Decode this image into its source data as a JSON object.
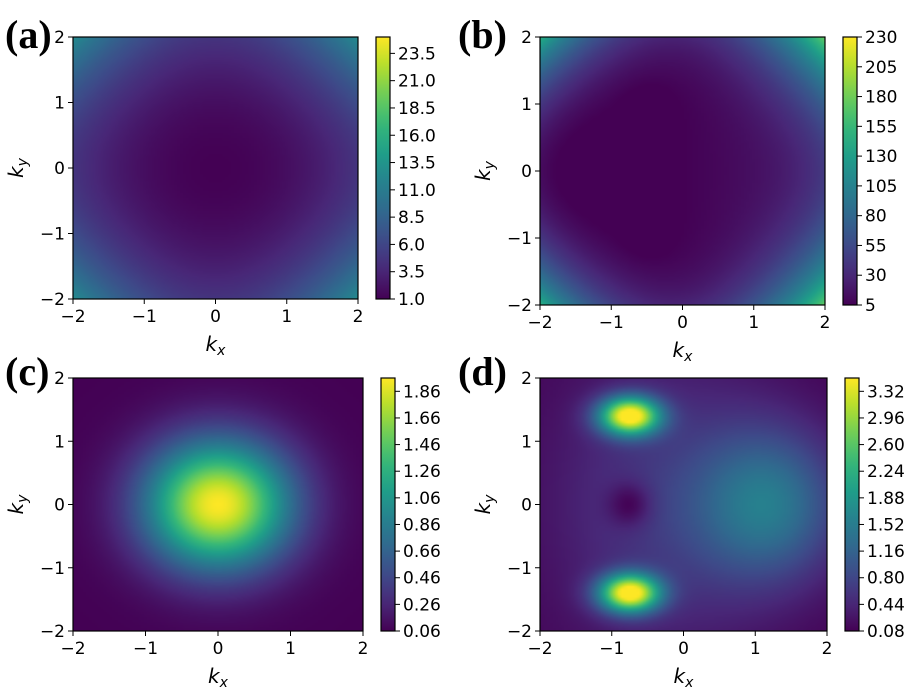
{
  "chart_data": [
    {
      "type": "heatmap",
      "panel_label": "(a)",
      "xlabel": "k_x",
      "ylabel": "k_y",
      "xlim": [
        -2,
        2
      ],
      "ylim": [
        -2,
        2
      ],
      "xticks": [
        "−2",
        "−1",
        "0",
        "1",
        "2"
      ],
      "yticks": [
        "−2",
        "−1",
        "0",
        "1",
        "2"
      ],
      "colormap": "viridis",
      "colorbar_range": [
        1.0,
        25.0
      ],
      "colorbar_ticks": [
        "1.0",
        "3.5",
        "6.0",
        "8.5",
        "11.0",
        "13.5",
        "16.0",
        "18.5",
        "21.0",
        "23.5"
      ],
      "pattern": "minimum (~1) at origin, rising to ~25 at the four corners"
    },
    {
      "type": "heatmap",
      "panel_label": "(b)",
      "xlabel": "k_x",
      "ylabel": "k_y",
      "xlim": [
        -2,
        2
      ],
      "ylim": [
        -2,
        2
      ],
      "xticks": [
        "−2",
        "−1",
        "0",
        "1",
        "2"
      ],
      "yticks": [
        "−2",
        "−1",
        "0",
        "1",
        "2"
      ],
      "colormap": "viridis",
      "colorbar_range": [
        5,
        230
      ],
      "colorbar_ticks": [
        "5",
        "30",
        "55",
        "80",
        "105",
        "130",
        "155",
        "180",
        "205",
        "230"
      ],
      "pattern": "low (~5) across most of the domain with minima near (-0.5, ±1), sharp rise to ~230 at corners, stronger on the right side"
    },
    {
      "type": "heatmap",
      "panel_label": "(c)",
      "xlabel": "k_x",
      "ylabel": "k_y",
      "xlim": [
        -2,
        2
      ],
      "ylim": [
        -2,
        2
      ],
      "xticks": [
        "−2",
        "−1",
        "0",
        "1",
        "2"
      ],
      "yticks": [
        "−2",
        "−1",
        "0",
        "1",
        "2"
      ],
      "colormap": "viridis",
      "colorbar_range": [
        0.06,
        1.96
      ],
      "colorbar_ticks": [
        "0.06",
        "0.26",
        "0.46",
        "0.66",
        "0.86",
        "1.06",
        "1.26",
        "1.46",
        "1.66",
        "1.86"
      ],
      "pattern": "Gaussian-like peak (~1.96) at origin decaying to ~0.06 at the edges"
    },
    {
      "type": "heatmap",
      "panel_label": "(d)",
      "xlabel": "k_x",
      "ylabel": "k_y",
      "xlim": [
        -2,
        2
      ],
      "ylim": [
        -2,
        2
      ],
      "xticks": [
        "−2",
        "−1",
        "0",
        "1",
        "2"
      ],
      "yticks": [
        "−2",
        "−1",
        "0",
        "1",
        "2"
      ],
      "colormap": "viridis",
      "colorbar_range": [
        0.08,
        3.5
      ],
      "colorbar_ticks": [
        "0.08",
        "0.44",
        "0.80",
        "1.16",
        "1.52",
        "1.88",
        "2.24",
        "2.60",
        "2.96",
        "3.32"
      ],
      "pattern": "two peaks (~3.5) near (-0.75, ±1.4), minimum near (-0.75, 0), moderate plateau (~1.3) on the right"
    }
  ]
}
